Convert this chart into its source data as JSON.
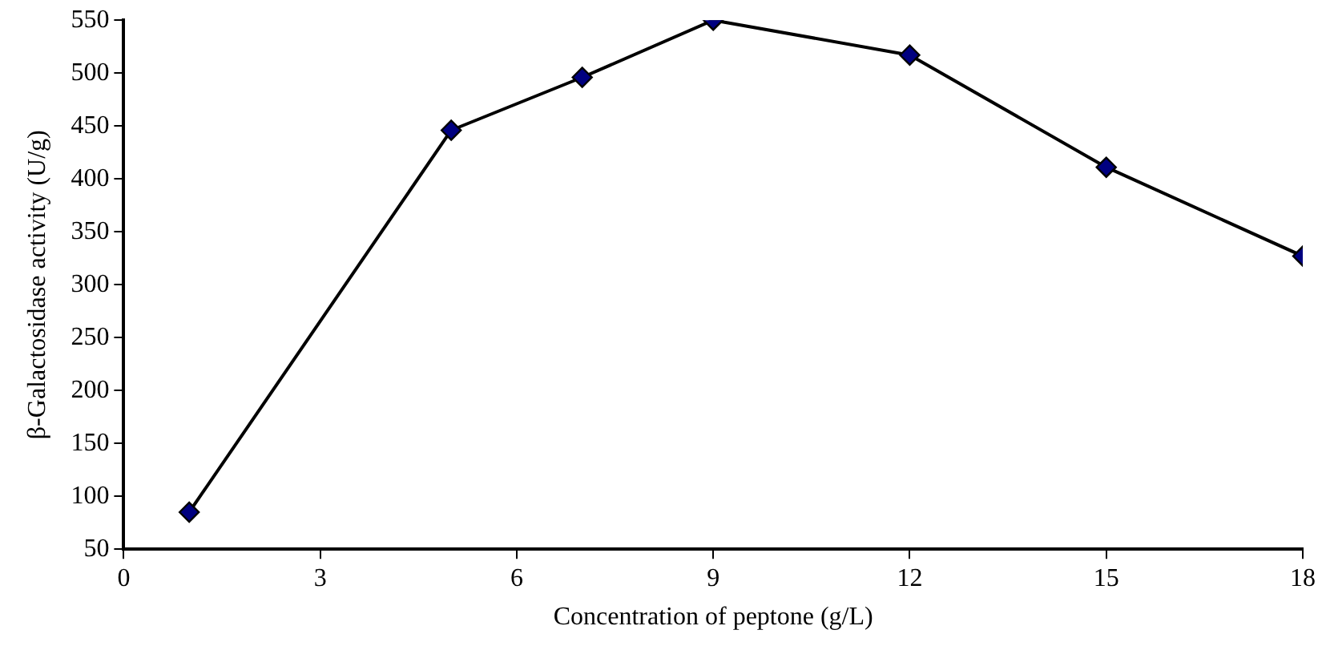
{
  "chart_data": {
    "type": "line",
    "xlabel": "Concentration of peptone (g/L)",
    "ylabel": "β-Galactosidase activity (U/g)",
    "x": [
      1,
      5,
      7,
      9,
      12,
      15,
      18
    ],
    "series": [
      {
        "color": "#000080",
        "values": [
          85,
          446,
          496,
          550,
          517,
          411,
          327
        ]
      }
    ],
    "xlim": [
      0,
      18
    ],
    "xticks": [
      0,
      3,
      6,
      9,
      12,
      15,
      18
    ],
    "ylim": [
      50,
      550
    ],
    "yticks": [
      50,
      100,
      150,
      200,
      250,
      300,
      350,
      400,
      450,
      500,
      550
    ],
    "grid": false,
    "legend": false,
    "marker": "diamond",
    "line_style": "solid"
  }
}
